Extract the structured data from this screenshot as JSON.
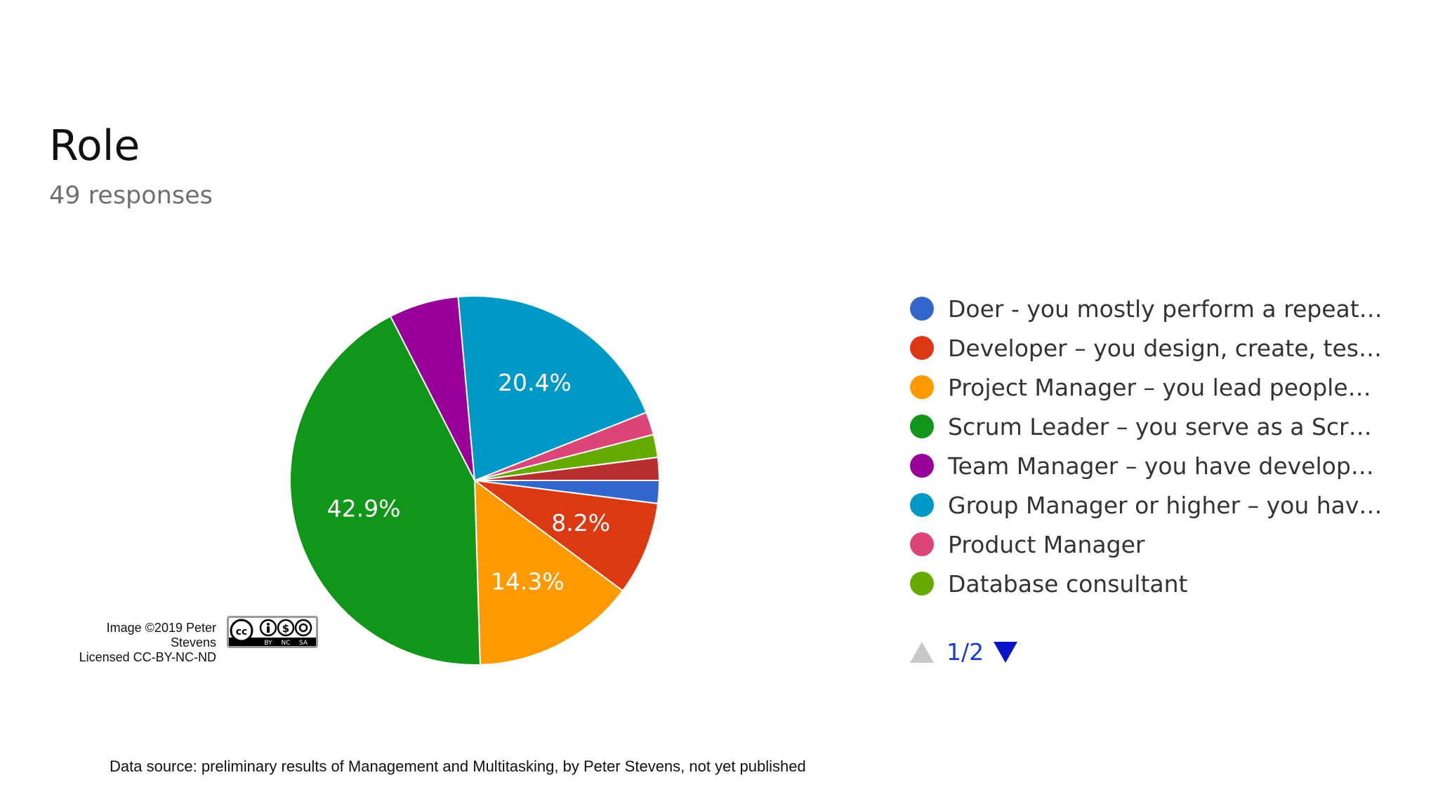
{
  "header": {
    "title": "Role",
    "subtitle": "49 responses"
  },
  "pager": {
    "text": "1/2"
  },
  "credit": {
    "line1": "Image ©2019 Peter Stevens",
    "line2": "Licensed CC-BY-NC-ND",
    "badge_labels": [
      "cc",
      "BY",
      "NC",
      "SA"
    ]
  },
  "footer": {
    "source": "Data source: preliminary results of Management and Multitasking, by Peter Stevens, not yet published"
  },
  "chart_data": {
    "type": "pie",
    "title": "Role",
    "subtitle": "49 responses",
    "legend_position": "right",
    "slices": [
      {
        "name": "Doer - you mostly perform a repeat…",
        "value": 2.0,
        "label": "",
        "color": "#3366cc"
      },
      {
        "name": "Developer – you design, create, tes…",
        "value": 8.2,
        "label": "8.2%",
        "color": "#dc3912"
      },
      {
        "name": "Project Manager – you lead people…",
        "value": 14.3,
        "label": "14.3%",
        "color": "#ff9900"
      },
      {
        "name": "Scrum Leader – you serve as a Scr…",
        "value": 42.9,
        "label": "42.9%",
        "color": "#109618"
      },
      {
        "name": "Team Manager – you have develop…",
        "value": 6.1,
        "label": "",
        "color": "#990099"
      },
      {
        "name": "Group Manager or higher – you hav…",
        "value": 20.4,
        "label": "20.4%",
        "color": "#0099c6"
      },
      {
        "name": "Product Manager",
        "value": 2.0,
        "label": "",
        "color": "#dd4477"
      },
      {
        "name": "Database consultant",
        "value": 2.0,
        "label": "",
        "color": "#66aa00"
      },
      {
        "name": "",
        "value": 2.0,
        "label": "",
        "color": "#b82e2e"
      }
    ],
    "legend_items": [
      {
        "label": "Doer - you mostly perform a repeat…",
        "color": "#3366cc"
      },
      {
        "label": "Developer – you design, create, tes…",
        "color": "#dc3912"
      },
      {
        "label": "Project Manager – you lead people…",
        "color": "#ff9900"
      },
      {
        "label": "Scrum Leader – you serve as a Scr…",
        "color": "#109618"
      },
      {
        "label": "Team Manager – you have develop…",
        "color": "#990099"
      },
      {
        "label": "Group Manager or higher – you hav…",
        "color": "#0099c6"
      },
      {
        "label": "Product Manager",
        "color": "#dd4477"
      },
      {
        "label": "Database consultant",
        "color": "#66aa00"
      }
    ]
  }
}
